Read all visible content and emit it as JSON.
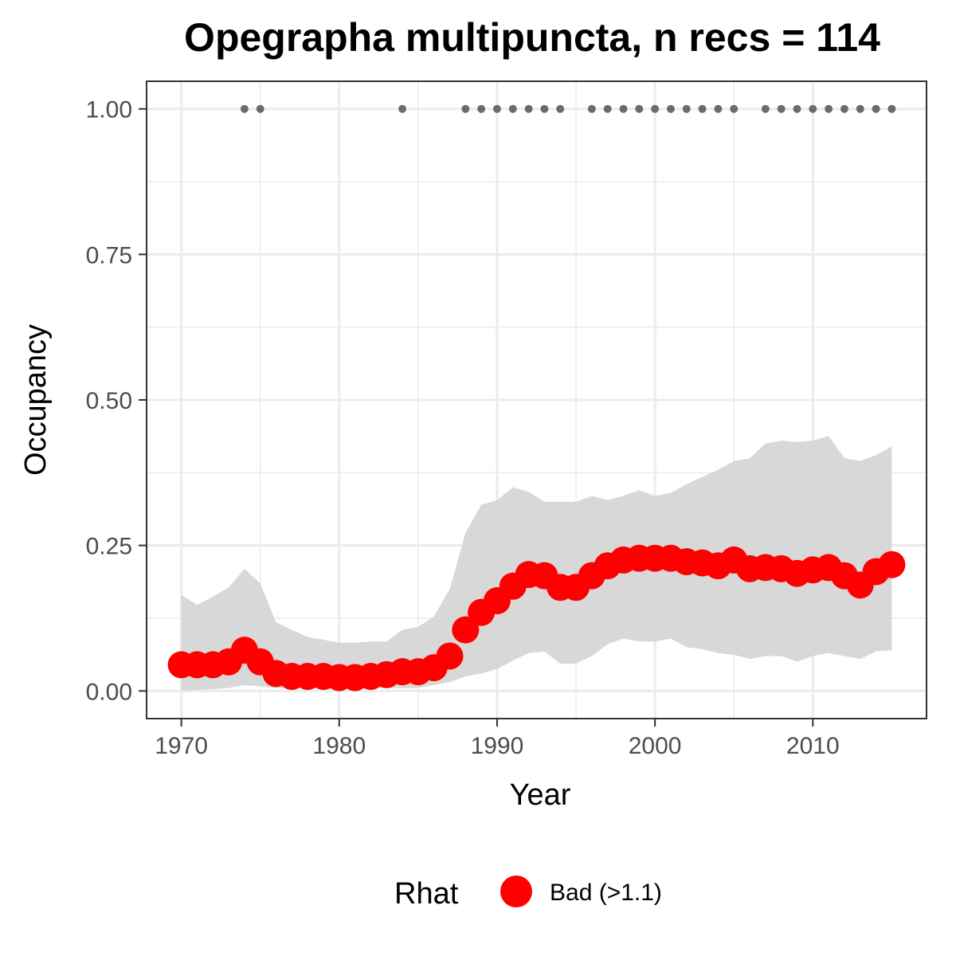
{
  "chart_data": {
    "type": "line",
    "title": "Opegrapha multipuncta, n recs = 114",
    "xlabel": "Year",
    "ylabel": "Occupancy",
    "xlim": [
      1967.8,
      2017.2
    ],
    "ylim": [
      -0.0475,
      1.0475
    ],
    "xticks": [
      1970,
      1980,
      1990,
      2000,
      2010
    ],
    "xtick_labels": [
      "1970",
      "1980",
      "1990",
      "2000",
      "2010"
    ],
    "yticks": [
      0,
      0.25,
      0.5,
      0.75,
      1.0
    ],
    "ytick_labels": [
      "0.00",
      "0.25",
      "0.50",
      "0.75",
      "1.00"
    ],
    "grid": true,
    "legend": {
      "title": "Rhat",
      "position": "bottom",
      "entries": [
        {
          "label": "Bad (>1.1)",
          "color": "#ff0000"
        }
      ]
    },
    "colors": {
      "series": "#ff0000",
      "ribbon": "#d6d6d6",
      "records": "#6b6b6b",
      "grid": "#ebebeb",
      "border": "#333333"
    },
    "x": [
      1970,
      1971,
      1972,
      1973,
      1974,
      1975,
      1976,
      1977,
      1978,
      1979,
      1980,
      1981,
      1982,
      1983,
      1984,
      1985,
      1986,
      1987,
      1988,
      1989,
      1990,
      1991,
      1992,
      1993,
      1994,
      1995,
      1996,
      1997,
      1998,
      1999,
      2000,
      2001,
      2002,
      2003,
      2004,
      2005,
      2006,
      2007,
      2008,
      2009,
      2010,
      2011,
      2012,
      2013,
      2014,
      2015
    ],
    "series": [
      {
        "values": [
          0.045,
          0.045,
          0.045,
          0.05,
          0.07,
          0.05,
          0.03,
          0.025,
          0.025,
          0.025,
          0.023,
          0.023,
          0.025,
          0.028,
          0.033,
          0.033,
          0.04,
          0.06,
          0.105,
          0.135,
          0.155,
          0.18,
          0.2,
          0.198,
          0.178,
          0.178,
          0.198,
          0.215,
          0.225,
          0.228,
          0.228,
          0.228,
          0.222,
          0.22,
          0.215,
          0.225,
          0.21,
          0.212,
          0.21,
          0.202,
          0.208,
          0.212,
          0.198,
          0.182,
          0.205,
          0.217
        ],
        "lower": [
          0.0,
          0.002,
          0.003,
          0.005,
          0.01,
          0.008,
          0.005,
          0.005,
          0.005,
          0.004,
          0.004,
          0.004,
          0.005,
          0.005,
          0.005,
          0.005,
          0.01,
          0.015,
          0.025,
          0.03,
          0.038,
          0.052,
          0.065,
          0.068,
          0.047,
          0.047,
          0.06,
          0.08,
          0.09,
          0.085,
          0.085,
          0.09,
          0.075,
          0.072,
          0.065,
          0.062,
          0.055,
          0.06,
          0.06,
          0.05,
          0.06,
          0.065,
          0.06,
          0.055,
          0.068,
          0.07
        ],
        "upper": [
          0.165,
          0.148,
          0.162,
          0.178,
          0.21,
          0.185,
          0.118,
          0.105,
          0.093,
          0.088,
          0.083,
          0.083,
          0.085,
          0.085,
          0.105,
          0.11,
          0.128,
          0.175,
          0.272,
          0.32,
          0.328,
          0.35,
          0.342,
          0.325,
          0.325,
          0.325,
          0.335,
          0.328,
          0.335,
          0.345,
          0.335,
          0.34,
          0.355,
          0.368,
          0.38,
          0.395,
          0.4,
          0.425,
          0.43,
          0.428,
          0.43,
          0.438,
          0.4,
          0.395,
          0.405,
          0.42
        ]
      }
    ],
    "record_years": [
      1974,
      1975,
      1984,
      1988,
      1989,
      1990,
      1991,
      1992,
      1993,
      1994,
      1996,
      1997,
      1998,
      1999,
      2000,
      2001,
      2002,
      2003,
      2004,
      2005,
      2007,
      2008,
      2009,
      2010,
      2011,
      2012,
      2013,
      2014,
      2015
    ],
    "record_value": 1.0
  }
}
